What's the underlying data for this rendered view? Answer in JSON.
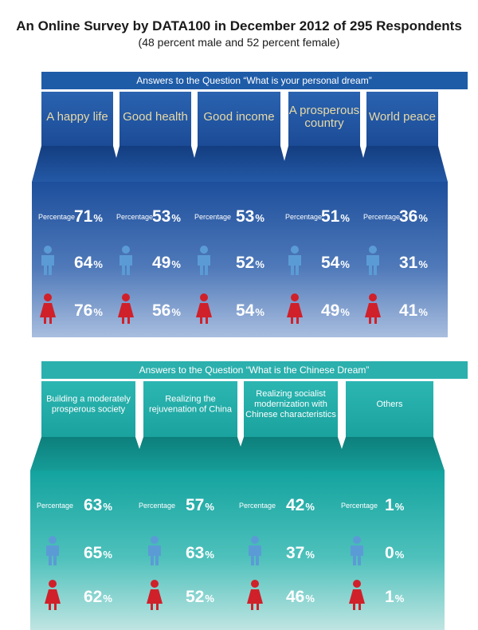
{
  "header": {
    "title": "An Online Survey by DATA100 in December 2012 of 295 Respondents",
    "subtitle": "(48 percent male and 52 percent female)"
  },
  "legend": {
    "total_label": "Percentage",
    "male_icon": "male-person-icon",
    "female_icon": "female-person-icon"
  },
  "colors": {
    "personal_band": "#1e5ca8",
    "personal_card_top": "#1d4f9c",
    "personal_card_bottom": "#9fb5d8",
    "chinese_band": "#2bb0ad",
    "chinese_card_top": "#15a39f",
    "chinese_card_bottom": "#b7e1de",
    "male": "#5b9bd5",
    "female": "#d0202a",
    "personal_title": "#e7d9a6"
  },
  "chart_data": [
    {
      "type": "table",
      "title": "Answers to the Question “What is your personal dream”",
      "categories": [
        "A happy life",
        "Good health",
        "Good income",
        "A prosperous country",
        "World peace"
      ],
      "series": [
        {
          "name": "Percentage",
          "values": [
            71,
            53,
            53,
            51,
            36
          ]
        },
        {
          "name": "male",
          "values": [
            64,
            49,
            52,
            54,
            31
          ]
        },
        {
          "name": "female",
          "values": [
            76,
            56,
            54,
            49,
            41
          ]
        }
      ],
      "unit": "%"
    },
    {
      "type": "table",
      "title": "Answers to the Question “What is the Chinese Dream”",
      "categories": [
        "Building a moderately prosperous society",
        "Realizing the rejuvenation of China",
        "Realizing socialist modernization with Chinese characteristics",
        "Others"
      ],
      "series": [
        {
          "name": "Percentage",
          "values": [
            63,
            57,
            42,
            1
          ]
        },
        {
          "name": "male",
          "values": [
            65,
            63,
            37,
            0
          ]
        },
        {
          "name": "female",
          "values": [
            62,
            52,
            46,
            1
          ]
        }
      ],
      "unit": "%"
    }
  ]
}
